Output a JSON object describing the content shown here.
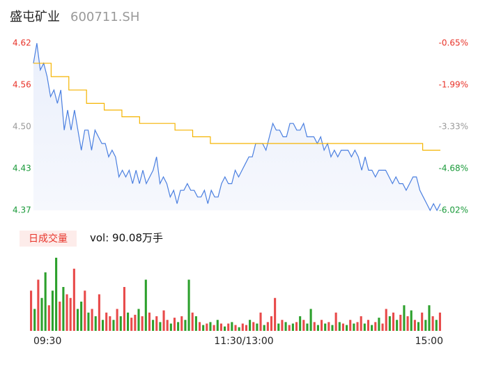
{
  "header": {
    "title": "盛屯矿业",
    "code": "600711.SH"
  },
  "chart_data": [
    {
      "type": "line",
      "ylim": [
        4.37,
        4.62
      ],
      "yticks": [
        4.37,
        {
          "value": 4.4325,
          "label": "4.43"
        },
        {
          "value": 4.495,
          "label": "4.50"
        },
        {
          "value": 4.5575,
          "label": "4.56"
        },
        4.62
      ],
      "ytick_colors": [
        "#1a9a3a",
        "#1a9a3a",
        "#999999",
        "#e8342a",
        "#e8342a"
      ],
      "y2lim": [
        -6.02,
        -0.65
      ],
      "y2ticks": [
        {
          "value": -6.02,
          "label": "-6.02%"
        },
        {
          "value": -4.6775,
          "label": "-4.68%"
        },
        {
          "value": -3.335,
          "label": "-3.33%"
        },
        {
          "value": -1.9925,
          "label": "-1.99%"
        },
        {
          "value": -0.65,
          "label": "-0.65%"
        }
      ],
      "y2tick_colors": [
        "#1a9a3a",
        "#1a9a3a",
        "#999999",
        "#e8342a",
        "#e8342a"
      ],
      "time_labels": [
        "09:30",
        "11:30/13:00",
        "15:00"
      ],
      "series": [
        {
          "color": "#4a7fe0",
          "area": true,
          "values": [
            4.59,
            4.62,
            4.58,
            4.59,
            4.57,
            4.54,
            4.55,
            4.53,
            4.55,
            4.49,
            4.52,
            4.49,
            4.52,
            4.49,
            4.46,
            4.49,
            4.49,
            4.46,
            4.49,
            4.48,
            4.47,
            4.47,
            4.45,
            4.46,
            4.45,
            4.42,
            4.43,
            4.42,
            4.43,
            4.41,
            4.43,
            4.41,
            4.43,
            4.41,
            4.42,
            4.43,
            4.45,
            4.41,
            4.42,
            4.41,
            4.39,
            4.4,
            4.38,
            4.4,
            4.4,
            4.41,
            4.4,
            4.4,
            4.39,
            4.39,
            4.4,
            4.38,
            4.4,
            4.39,
            4.39,
            4.41,
            4.42,
            4.41,
            4.41,
            4.43,
            4.42,
            4.43,
            4.44,
            4.45,
            4.45,
            4.47,
            4.47,
            4.47,
            4.46,
            4.48,
            4.5,
            4.49,
            4.49,
            4.48,
            4.48,
            4.5,
            4.5,
            4.49,
            4.49,
            4.5,
            4.48,
            4.48,
            4.48,
            4.47,
            4.48,
            4.46,
            4.47,
            4.45,
            4.46,
            4.45,
            4.46,
            4.46,
            4.46,
            4.45,
            4.46,
            4.45,
            4.43,
            4.45,
            4.43,
            4.43,
            4.42,
            4.43,
            4.43,
            4.43,
            4.42,
            4.41,
            4.42,
            4.41,
            4.41,
            4.4,
            4.41,
            4.42,
            4.42,
            4.4,
            4.39,
            4.38,
            4.37,
            4.38,
            4.37,
            4.38
          ]
        },
        {
          "color": "#f5b400",
          "step": true,
          "values": [
            4.59,
            4.57,
            4.55,
            4.53,
            4.52,
            4.51,
            4.5,
            4.5,
            4.49,
            4.48,
            4.47,
            4.47,
            4.47,
            4.47,
            4.47,
            4.47,
            4.47,
            4.47,
            4.47,
            4.47,
            4.47,
            4.47,
            4.46,
            4.46
          ]
        }
      ]
    },
    {
      "type": "volume-bar",
      "label": "日成交量",
      "summary": "vol: 90.08万手",
      "ylim": [
        0,
        100
      ],
      "values": [
        55,
        30,
        70,
        45,
        80,
        35,
        55,
        100,
        40,
        60,
        50,
        45,
        85,
        30,
        40,
        55,
        25,
        30,
        20,
        50,
        15,
        25,
        20,
        15,
        30,
        20,
        60,
        25,
        18,
        22,
        30,
        20,
        70,
        25,
        15,
        20,
        12,
        28,
        15,
        10,
        18,
        12,
        20,
        15,
        70,
        25,
        20,
        12,
        8,
        10,
        12,
        8,
        15,
        10,
        6,
        10,
        12,
        8,
        5,
        10,
        8,
        15,
        12,
        10,
        25,
        8,
        12,
        20,
        45,
        10,
        15,
        12,
        8,
        10,
        12,
        20,
        15,
        10,
        30,
        12,
        8,
        15,
        10,
        12,
        8,
        25,
        12,
        10,
        8,
        15,
        10,
        12,
        20,
        10,
        15,
        8,
        12,
        18,
        10,
        30,
        20,
        25,
        15,
        22,
        35,
        20,
        28,
        15,
        12,
        25,
        15,
        35,
        20,
        15,
        25
      ],
      "colors": [
        "#e84a4a",
        "#2ca02c",
        "#e84a4a",
        "#2ca02c",
        "#2ca02c",
        "#e84a4a",
        "#2ca02c",
        "#2ca02c",
        "#e84a4a",
        "#2ca02c",
        "#e84a4a",
        "#e84a4a",
        "#e84a4a",
        "#2ca02c",
        "#2ca02c",
        "#e84a4a",
        "#2ca02c",
        "#e84a4a",
        "#2ca02c",
        "#e84a4a",
        "#2ca02c",
        "#e84a4a",
        "#e84a4a",
        "#2ca02c",
        "#e84a4a",
        "#2ca02c",
        "#e84a4a",
        "#2ca02c",
        "#e84a4a",
        "#e84a4a",
        "#2ca02c",
        "#e84a4a",
        "#2ca02c",
        "#e84a4a",
        "#2ca02c",
        "#e84a4a",
        "#2ca02c",
        "#e84a4a",
        "#e84a4a",
        "#2ca02c",
        "#e84a4a",
        "#2ca02c",
        "#e84a4a",
        "#2ca02c",
        "#2ca02c",
        "#e84a4a",
        "#2ca02c",
        "#e84a4a",
        "#2ca02c",
        "#e84a4a",
        "#2ca02c",
        "#e84a4a",
        "#2ca02c",
        "#e84a4a",
        "#2ca02c",
        "#e84a4a",
        "#2ca02c",
        "#e84a4a",
        "#2ca02c",
        "#e84a4a",
        "#e84a4a",
        "#2ca02c",
        "#e84a4a",
        "#2ca02c",
        "#e84a4a",
        "#2ca02c",
        "#e84a4a",
        "#e84a4a",
        "#e84a4a",
        "#2ca02c",
        "#e84a4a",
        "#2ca02c",
        "#e84a4a",
        "#2ca02c",
        "#e84a4a",
        "#2ca02c",
        "#e84a4a",
        "#2ca02c",
        "#2ca02c",
        "#e84a4a",
        "#2ca02c",
        "#e84a4a",
        "#2ca02c",
        "#e84a4a",
        "#2ca02c",
        "#e84a4a",
        "#2ca02c",
        "#e84a4a",
        "#2ca02c",
        "#e84a4a",
        "#2ca02c",
        "#e84a4a",
        "#e84a4a",
        "#2ca02c",
        "#e84a4a",
        "#2ca02c",
        "#e84a4a",
        "#2ca02c",
        "#e84a4a",
        "#e84a4a",
        "#2ca02c",
        "#e84a4a",
        "#2ca02c",
        "#e84a4a",
        "#2ca02c",
        "#e84a4a",
        "#2ca02c",
        "#e84a4a",
        "#2ca02c",
        "#e84a4a",
        "#2ca02c",
        "#2ca02c",
        "#e84a4a",
        "#2ca02c",
        "#e84a4a"
      ]
    }
  ]
}
